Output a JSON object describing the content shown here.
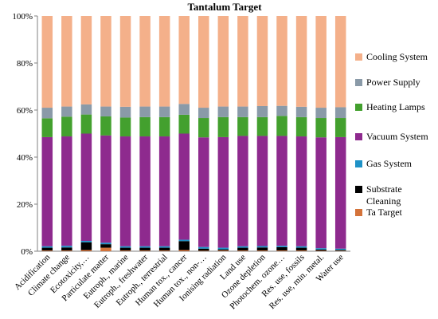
{
  "chart_data": {
    "type": "bar",
    "stacked": true,
    "title": "Tantalum Target",
    "xlabel": "",
    "ylabel": "",
    "ylim": [
      0,
      100
    ],
    "yticks": [
      "0%",
      "20%",
      "40%",
      "60%",
      "80%",
      "100%"
    ],
    "grid": false,
    "legend_position": "right",
    "categories": [
      "Acidification",
      "Climate change",
      "Ecotoxicity,…",
      "Particulate matter",
      "Eutroph., marine",
      "Eutroph., freshwater",
      "Eutroph., terrestrial",
      "Human tox., cancer",
      "Human tox., non-…",
      "Ionising radiation",
      "Land use",
      "Ozone depletion",
      "Photochem. ozone…",
      "Res. use, fossils",
      "Res. use, min. metal.",
      "Water use"
    ],
    "series": [
      {
        "name": "Ta Target",
        "color": "#d4733a",
        "values": [
          0.3,
          0.3,
          0.5,
          1.5,
          0.3,
          0.3,
          0.3,
          0.5,
          0.2,
          0.3,
          0.3,
          0.3,
          0.3,
          0.3,
          0.2,
          0.2
        ]
      },
      {
        "name": "Substrate Cleaning",
        "color": "#000000",
        "values": [
          1.2,
          1.3,
          3.3,
          1.5,
          1.2,
          1.2,
          1.2,
          3.8,
          0.9,
          0.5,
          1.2,
          1.3,
          1.4,
          1.2,
          0.5,
          0.3
        ]
      },
      {
        "name": "Gas System",
        "color": "#1f92c7",
        "values": [
          0.6,
          0.7,
          0.6,
          0.6,
          0.6,
          0.6,
          0.6,
          0.6,
          0.7,
          0.7,
          0.6,
          0.6,
          0.6,
          0.6,
          0.6,
          0.6
        ]
      },
      {
        "name": "Vacuum System",
        "color": "#8e2a8e",
        "values": [
          46.4,
          46.5,
          45.6,
          45.6,
          46.7,
          46.7,
          46.7,
          45.1,
          46.6,
          47.0,
          46.9,
          46.8,
          46.7,
          46.7,
          47.1,
          47.4
        ]
      },
      {
        "name": "Heating Lamps",
        "color": "#43a02e",
        "values": [
          8.0,
          8.4,
          8.1,
          8.1,
          8.0,
          8.2,
          8.2,
          8.0,
          8.2,
          8.5,
          8.0,
          8.0,
          8.5,
          8.2,
          8.2,
          8.1
        ]
      },
      {
        "name": "Power Supply",
        "color": "#8a9aa8",
        "values": [
          4.5,
          4.3,
          4.3,
          4.2,
          4.6,
          4.5,
          4.5,
          4.6,
          4.4,
          4.5,
          4.5,
          4.7,
          4.3,
          4.4,
          4.4,
          4.6
        ]
      },
      {
        "name": "Cooling System",
        "color": "#f4b08a",
        "values": [
          39.0,
          38.5,
          37.6,
          38.5,
          38.6,
          38.5,
          38.5,
          37.4,
          39.0,
          38.5,
          38.5,
          38.3,
          38.2,
          38.6,
          39.0,
          38.8
        ]
      }
    ],
    "legend_order": [
      "Cooling System",
      "Power Supply",
      "Heating Lamps",
      "Vacuum System",
      "Gas System",
      "Substrate Cleaning",
      "Ta Target"
    ]
  }
}
